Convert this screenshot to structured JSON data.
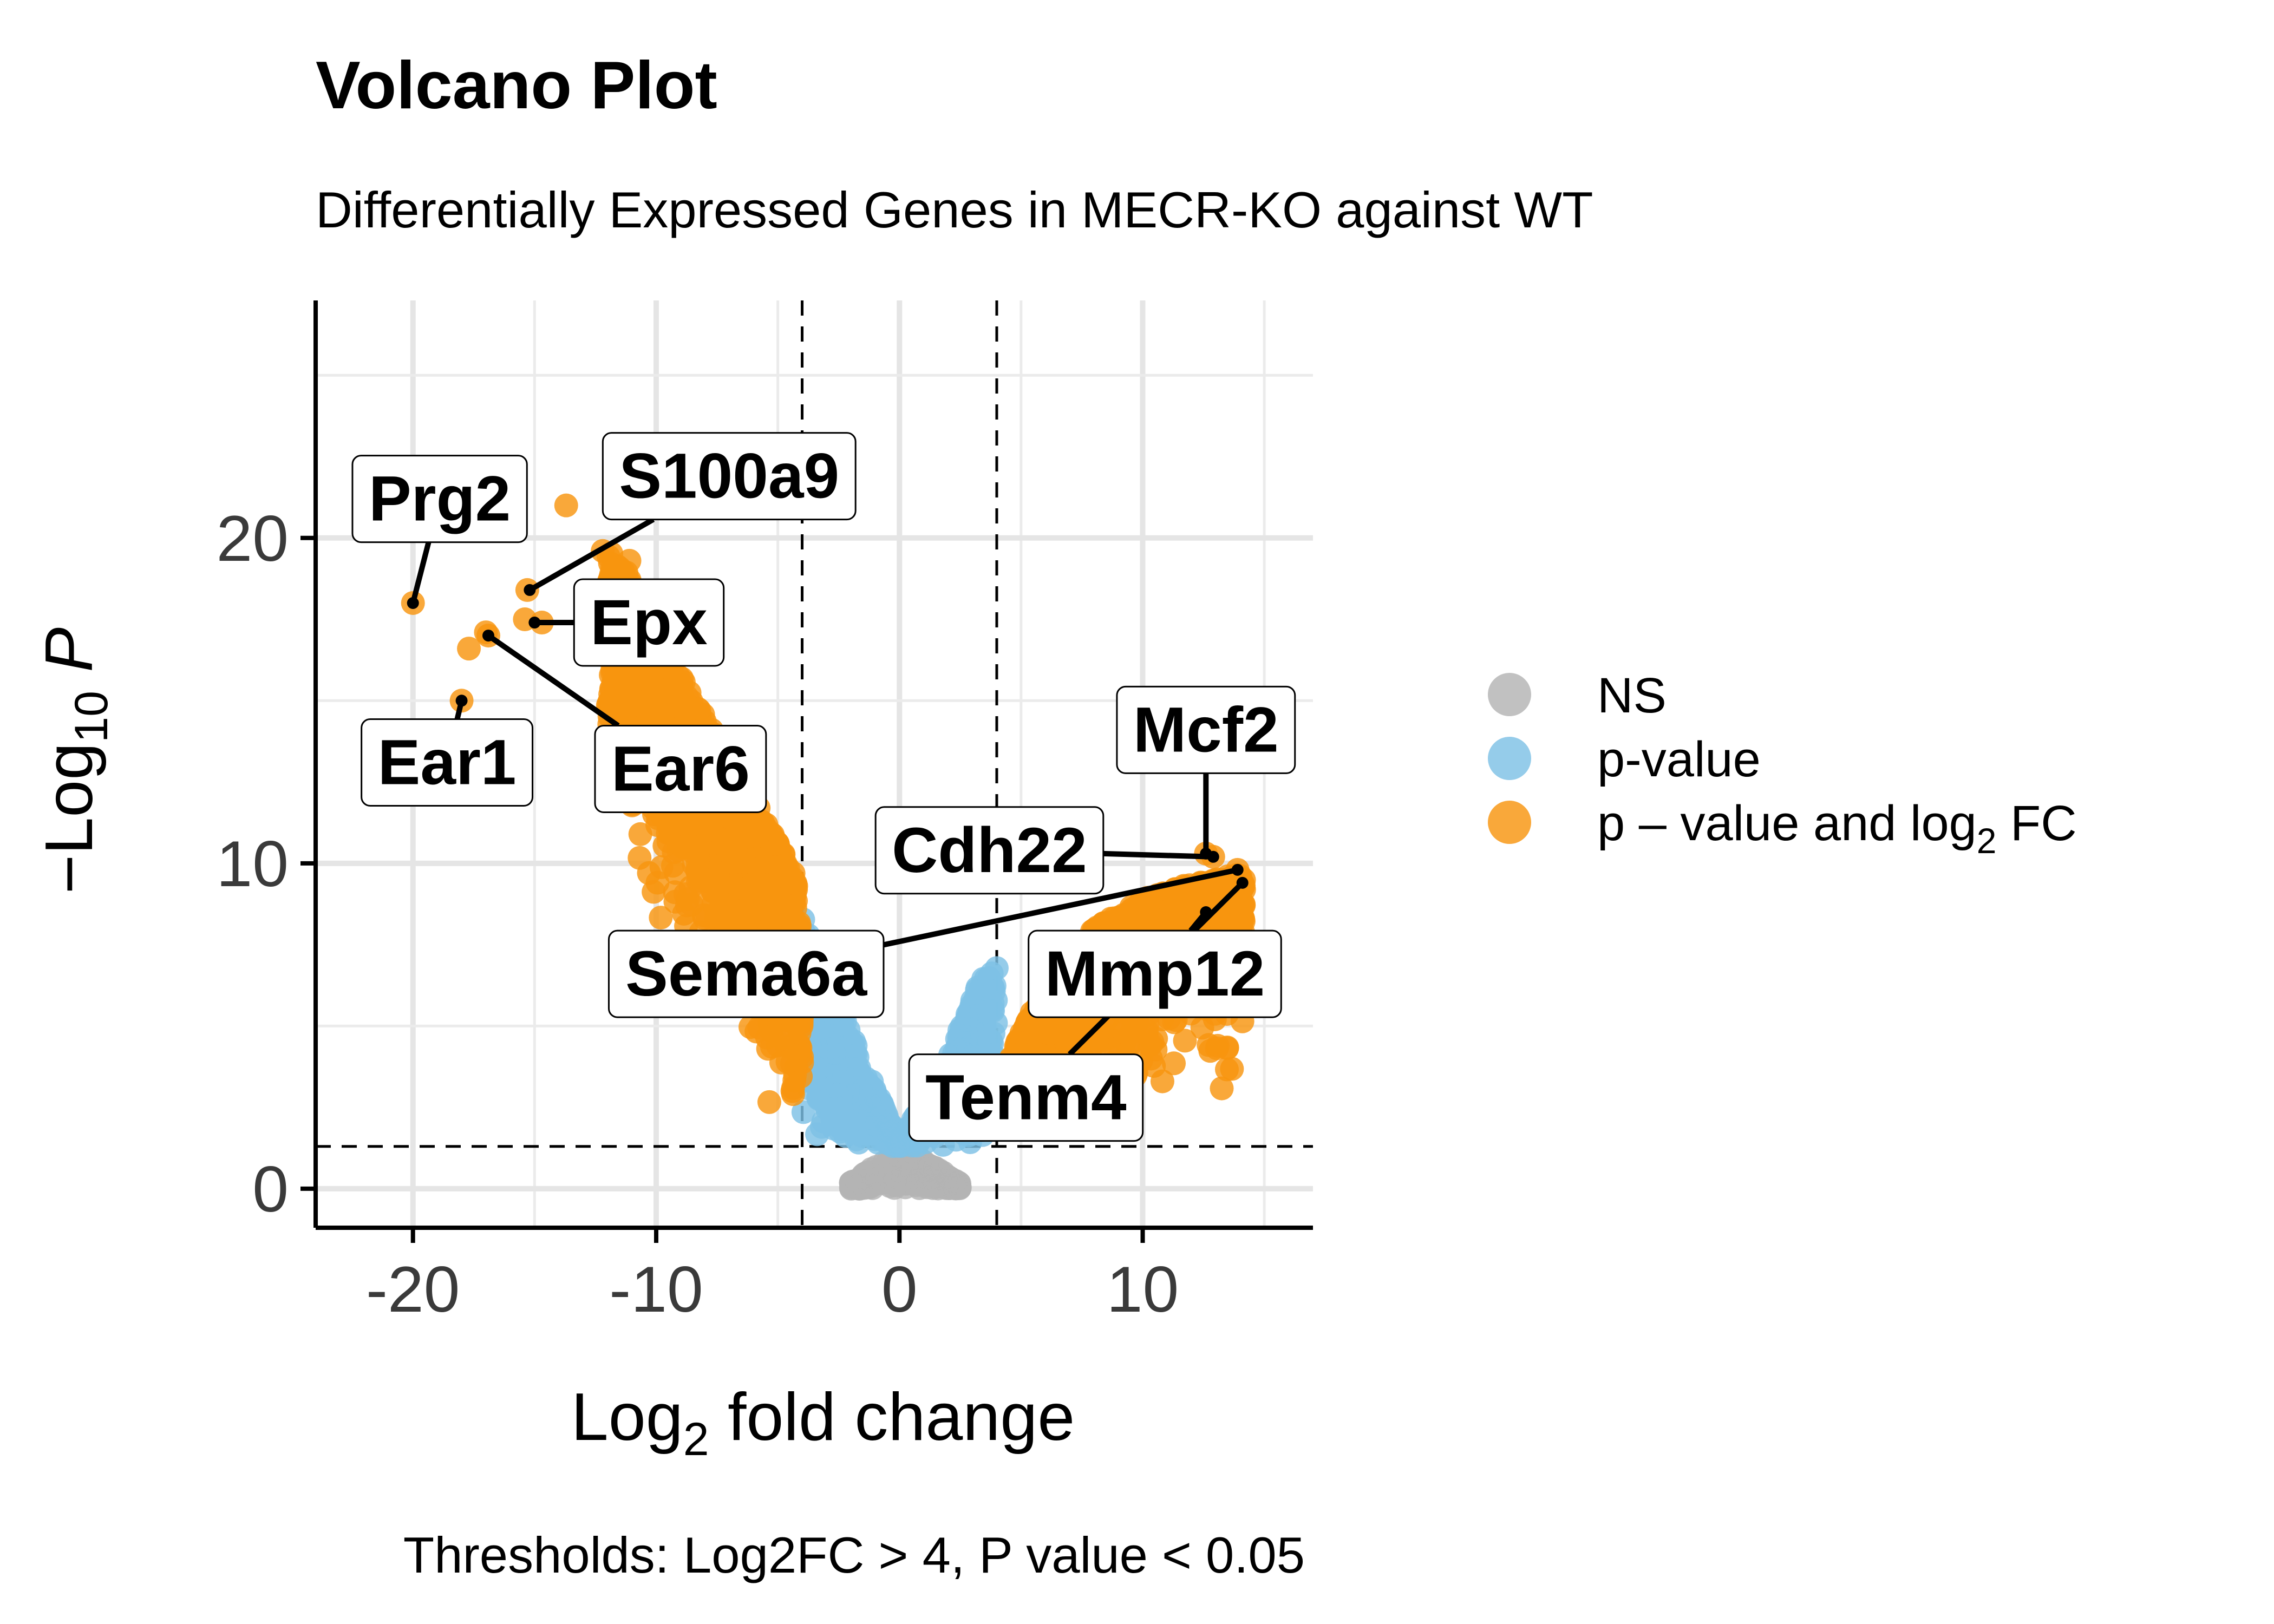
{
  "chart_data": {
    "type": "scatter",
    "title": "Volcano Plot",
    "subtitle": "Differentially Expressed Genes in MECR-KO against WT",
    "caption": "Thresholds: Log2FC > 4, P value < 0.05",
    "xlabel": {
      "base": "Log",
      "sub": "2",
      "rest": " fold change"
    },
    "ylabel": {
      "prefix": "−Log",
      "sub": "10",
      "rest": " P"
    },
    "xlim": [
      -24,
      17
    ],
    "ylim": [
      -1.2,
      27.3
    ],
    "xticks": [
      -20,
      -10,
      0,
      10
    ],
    "yticks": [
      0,
      10,
      20
    ],
    "xtick_labels": [
      "-20",
      "-10",
      "0",
      "10"
    ],
    "ytick_labels": [
      "0",
      "10",
      "20"
    ],
    "grid": true,
    "thresholds": {
      "log2fc": [
        -4,
        4
      ],
      "neg_log10_p": 1.3
    },
    "colors": {
      "NS": "#b3b3b3",
      "pvalue": "#7ec1e5",
      "both": "#f8950f"
    },
    "legend": {
      "position": "right",
      "items": [
        {
          "key": "NS",
          "label": "NS"
        },
        {
          "key": "pvalue",
          "label": "p-value"
        },
        {
          "key": "both",
          "label": "p – value and log",
          "sub": "2",
          "rest": " FC"
        }
      ]
    },
    "labeled_genes": [
      {
        "gene": "Prg2",
        "x": -20.0,
        "y": 18.0,
        "label_x": -18.9,
        "label_y": 21.2
      },
      {
        "gene": "S100a9",
        "x": -15.2,
        "y": 18.4,
        "label_x": -7.0,
        "label_y": 21.9
      },
      {
        "gene": "Epx",
        "x": -15.0,
        "y": 17.4,
        "label_x": -10.3,
        "label_y": 17.4
      },
      {
        "gene": "Ear1",
        "x": -18.0,
        "y": 15.0,
        "label_x": -18.6,
        "label_y": 13.1
      },
      {
        "gene": "Ear6",
        "x": -16.9,
        "y": 17.0,
        "label_x": -9.0,
        "label_y": 12.9
      },
      {
        "gene": "Mcf2",
        "x": 12.6,
        "y": 10.3,
        "label_x": 12.6,
        "label_y": 14.1
      },
      {
        "gene": "Cdh22",
        "x": 12.9,
        "y": 10.2,
        "label_x": 3.7,
        "label_y": 10.4
      },
      {
        "gene": "Sema6a",
        "x": 13.9,
        "y": 9.8,
        "label_x": -6.3,
        "label_y": 6.6
      },
      {
        "gene": "Mmp12",
        "x": 12.6,
        "y": 8.5,
        "label_x": 10.5,
        "label_y": 6.6
      },
      {
        "gene": "Tenm4",
        "x": 14.1,
        "y": 9.4,
        "label_x": 5.2,
        "label_y": 2.8
      }
    ],
    "point_groups": [
      {
        "group": "both",
        "x_range": [
          -16.5,
          -12.0
        ],
        "y_range": [
          14.5,
          19.5
        ],
        "trend": [
          [
            -16.5,
            17.5
          ],
          [
            -12.0,
            19.5
          ]
        ]
      },
      {
        "group": "both",
        "x_range": [
          -12.0,
          -4.0
        ],
        "trend": [
          [
            -12.0,
            19.5
          ],
          [
            -10.0,
            16.5
          ],
          [
            -8.0,
            13.5
          ],
          [
            -6.0,
            10.5
          ],
          [
            -4.0,
            6.5
          ]
        ]
      },
      {
        "group": "pvalue",
        "x_range": [
          -4.0,
          4.0
        ],
        "trend": [
          [
            -4.0,
            8.0
          ],
          [
            -2.0,
            4.5
          ],
          [
            0.0,
            1.3
          ],
          [
            2.0,
            3.5
          ],
          [
            4.0,
            6.5
          ]
        ]
      },
      {
        "group": "NS",
        "x_range": [
          -2.0,
          2.5
        ],
        "y_range": [
          0.0,
          1.3
        ]
      },
      {
        "group": "both",
        "x_range": [
          4.0,
          14.3
        ],
        "trend": [
          [
            4.0,
            3.0
          ],
          [
            6.0,
            6.0
          ],
          [
            8.0,
            8.0
          ],
          [
            10.0,
            9.0
          ],
          [
            12.0,
            9.5
          ],
          [
            14.0,
            9.7
          ]
        ]
      }
    ],
    "scattered_points": [
      {
        "x": -20.0,
        "y": 18.0,
        "group": "both"
      },
      {
        "x": -17.7,
        "y": 16.6,
        "group": "both"
      },
      {
        "x": -17.0,
        "y": 17.1,
        "group": "both"
      },
      {
        "x": -15.3,
        "y": 18.4,
        "group": "both"
      },
      {
        "x": -15.4,
        "y": 17.5,
        "group": "both"
      },
      {
        "x": -13.7,
        "y": 21.0,
        "group": "both"
      },
      {
        "x": -14.7,
        "y": 17.4,
        "group": "both"
      },
      {
        "x": -18.0,
        "y": 15.0,
        "group": "both"
      },
      {
        "x": -16.9,
        "y": 17.0,
        "group": "both"
      },
      {
        "x": -12.2,
        "y": 19.6,
        "group": "both"
      },
      {
        "x": -11.1,
        "y": 19.3,
        "group": "both"
      },
      {
        "x": -10.3,
        "y": 9.7,
        "group": "both"
      },
      {
        "x": -8.9,
        "y": 10.5,
        "group": "both"
      },
      {
        "x": -8.7,
        "y": 8.9,
        "group": "both"
      },
      {
        "x": -8.1,
        "y": 9.0,
        "group": "both"
      },
      {
        "x": -7.3,
        "y": 7.2,
        "group": "both"
      },
      {
        "x": -5.4,
        "y": 4.3,
        "group": "both"
      },
      {
        "x": -5.0,
        "y": 4.4,
        "group": "both"
      },
      {
        "x": -4.6,
        "y": 3.9,
        "group": "both"
      },
      {
        "x": -4.4,
        "y": 3.0,
        "group": "both"
      },
      {
        "x": 12.6,
        "y": 10.3,
        "group": "both"
      },
      {
        "x": 12.9,
        "y": 10.2,
        "group": "both"
      },
      {
        "x": 13.9,
        "y": 9.8,
        "group": "both"
      },
      {
        "x": 14.1,
        "y": 9.4,
        "group": "both"
      },
      {
        "x": 12.6,
        "y": 8.5,
        "group": "both"
      },
      {
        "x": 13.4,
        "y": 8.8,
        "group": "both"
      }
    ]
  }
}
